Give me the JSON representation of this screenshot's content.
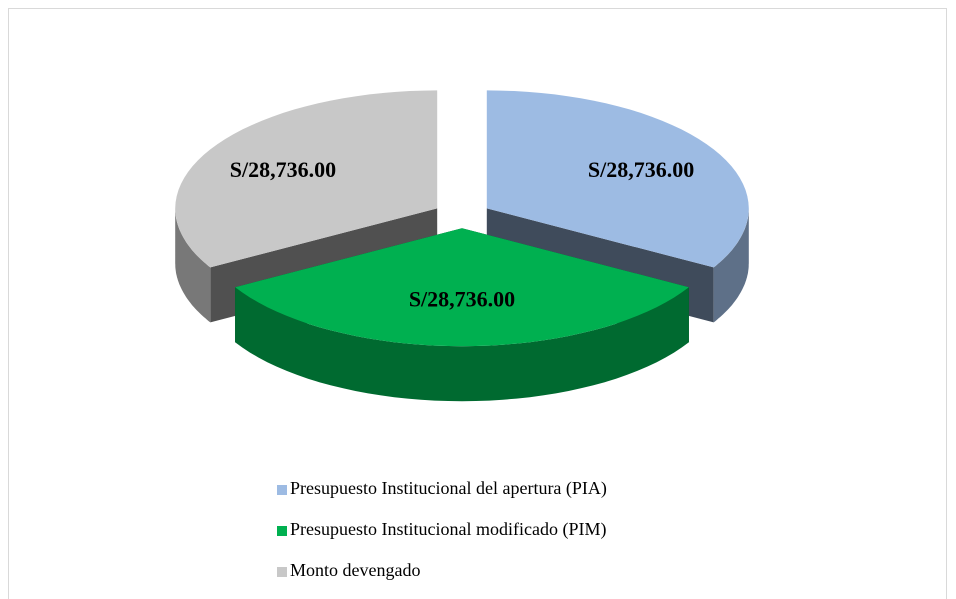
{
  "chart_data": {
    "type": "pie",
    "categories": [
      "Presupuesto Institucional del apertura (PIA)",
      "Presupuesto Institucional modificado (PIM)",
      "Monto devengado"
    ],
    "values": [
      28736,
      28736,
      28736
    ],
    "value_labels": [
      "S/28,736.00",
      "S/28,736.00",
      "S/28,736.00"
    ],
    "colors": [
      "#9dbbe3",
      "#00b050",
      "#c8c8c8"
    ],
    "legend": "bottom"
  }
}
